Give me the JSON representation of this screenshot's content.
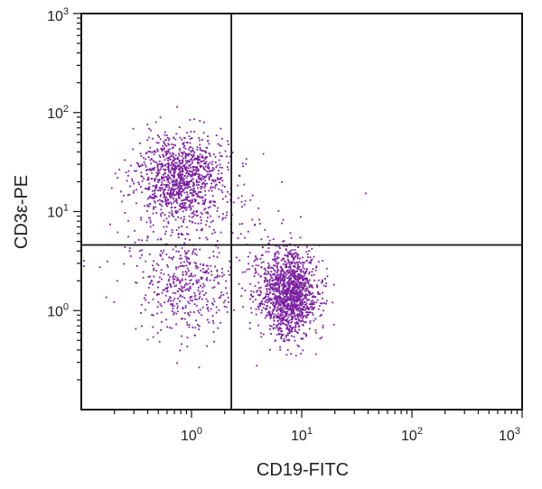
{
  "chart_data": {
    "type": "scatter",
    "title": "",
    "xlabel": "CD19-FITC",
    "ylabel": "CD3ε-PE",
    "xscale": "log",
    "yscale": "log",
    "xlim": [
      0.1,
      1000
    ],
    "ylim": [
      0.1,
      1000
    ],
    "x_tick_labels": [
      {
        "base": "10",
        "exp": "0",
        "value": 1
      },
      {
        "base": "10",
        "exp": "1",
        "value": 10
      },
      {
        "base": "10",
        "exp": "2",
        "value": 100
      },
      {
        "base": "10",
        "exp": "3",
        "value": 1000
      }
    ],
    "y_tick_labels": [
      {
        "base": "10",
        "exp": "0",
        "value": 1
      },
      {
        "base": "10",
        "exp": "1",
        "value": 10
      },
      {
        "base": "10",
        "exp": "2",
        "value": 100
      },
      {
        "base": "10",
        "exp": "3",
        "value": 1000
      }
    ],
    "quadrant_gates": {
      "x": 2.3,
      "y": 4.6
    },
    "grid": false,
    "point_color": "#7a1fa0",
    "populations": [
      {
        "center_x": 0.8,
        "center_y": 22,
        "spread_x_log": 0.2,
        "spread_y_log": 0.22,
        "count": 1100
      },
      {
        "center_x": 0.85,
        "center_y": 1.7,
        "spread_x_log": 0.2,
        "spread_y_log": 0.24,
        "count": 330
      },
      {
        "center_x": 7.5,
        "center_y": 1.5,
        "spread_x_log": 0.13,
        "spread_y_log": 0.22,
        "count": 1400
      },
      {
        "center_x": 1.2,
        "center_y": 4.5,
        "spread_x_log": 0.4,
        "spread_y_log": 0.4,
        "count": 260
      }
    ]
  }
}
